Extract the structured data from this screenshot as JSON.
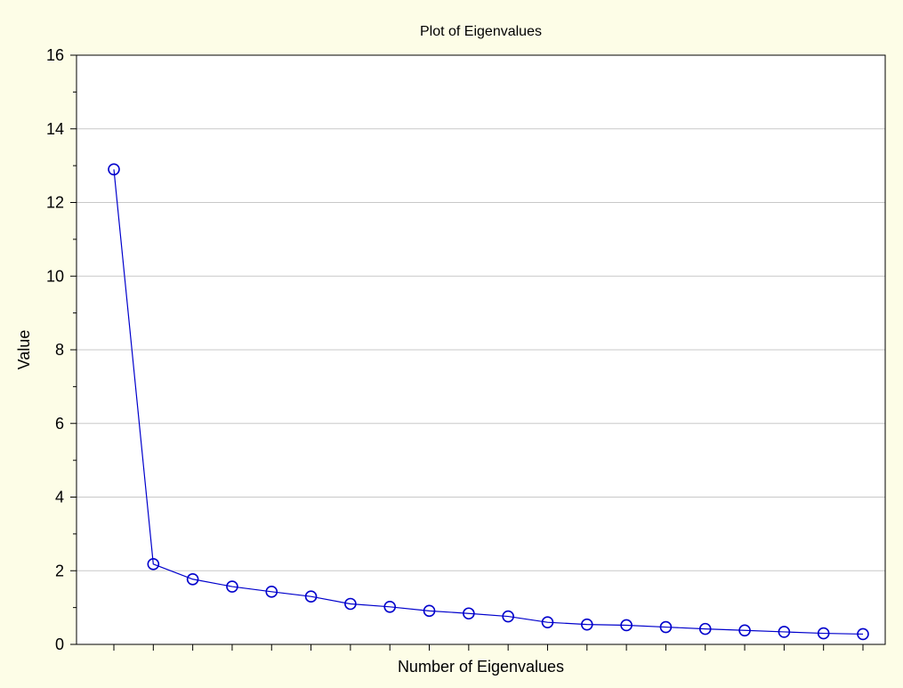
{
  "chart_data": {
    "type": "line",
    "title": "Plot of Eigenvalues",
    "xlabel": "Number of Eigenvalues",
    "ylabel": "Value",
    "x": [
      1,
      2,
      3,
      4,
      5,
      6,
      7,
      8,
      9,
      10,
      11,
      12,
      13,
      14,
      15,
      16,
      17,
      18,
      19,
      20
    ],
    "values": [
      12.9,
      2.18,
      1.77,
      1.57,
      1.43,
      1.3,
      1.1,
      1.02,
      0.91,
      0.84,
      0.76,
      0.6,
      0.54,
      0.52,
      0.47,
      0.42,
      0.38,
      0.34,
      0.3,
      0.28
    ],
    "ylim": [
      0,
      16
    ],
    "yticks": [
      0,
      2,
      4,
      6,
      8,
      10,
      12,
      14,
      16
    ],
    "grid": true,
    "legend": "none",
    "colors": {
      "background": "#fdfde7",
      "plot_background": "#ffffff",
      "series": "#0000cc",
      "grid": "#c8c8c8",
      "axis": "#000000"
    }
  }
}
